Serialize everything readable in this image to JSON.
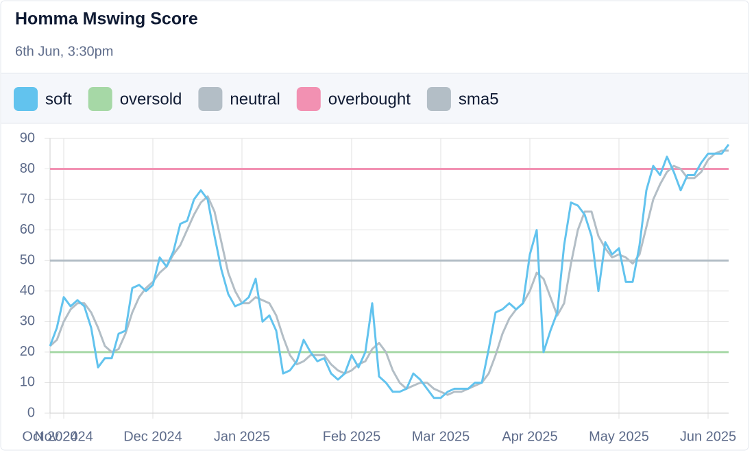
{
  "chart_data": {
    "type": "line",
    "title": "Homma Mswing Score",
    "subtitle": "6th Jun, 3:30pm",
    "categories": [
      "Oct 2024",
      null,
      "Nov 2024",
      null,
      null,
      null,
      null,
      null,
      null,
      null,
      null,
      null,
      null,
      null,
      null,
      "Dec 2024",
      null,
      null,
      null,
      null,
      null,
      null,
      null,
      null,
      null,
      null,
      null,
      null,
      "Jan 2025",
      null,
      null,
      null,
      null,
      null,
      null,
      null,
      null,
      null,
      null,
      null,
      null,
      null,
      null,
      null,
      "Feb 2025",
      null,
      null,
      null,
      null,
      null,
      null,
      null,
      null,
      null,
      null,
      null,
      null,
      "Mar 2025",
      null,
      null,
      null,
      null,
      null,
      null,
      null,
      null,
      null,
      null,
      null,
      null,
      "Apr 2025",
      null,
      null,
      null,
      null,
      null,
      null,
      null,
      null,
      null,
      null,
      null,
      null,
      "May 2025",
      null,
      null,
      null,
      null,
      null,
      null,
      null,
      null,
      null,
      null,
      null,
      null,
      "Jun 2025",
      null,
      null,
      null
    ],
    "series": [
      {
        "name": "soft",
        "color": "#62c3ee",
        "values": [
          22,
          28,
          38,
          35,
          37,
          35,
          28,
          15,
          18,
          18,
          26,
          27,
          41,
          42,
          40,
          42,
          51,
          48,
          53,
          62,
          63,
          70,
          73,
          70,
          58,
          47,
          39,
          35,
          36,
          38,
          44,
          30,
          32,
          27,
          13,
          14,
          17,
          24,
          20,
          17,
          18,
          13,
          11,
          13,
          19,
          15,
          20,
          36,
          12,
          10,
          7,
          7,
          8,
          13,
          11,
          8,
          5,
          5,
          7,
          8,
          8,
          8,
          10,
          10,
          21,
          33,
          34,
          36,
          34,
          36,
          52,
          60,
          20,
          27,
          33,
          55,
          69,
          68,
          65,
          58,
          40,
          56,
          52,
          54,
          43,
          43,
          55,
          73,
          81,
          78,
          84,
          79,
          73,
          78,
          78,
          82,
          85,
          85,
          85,
          88
        ]
      },
      {
        "name": "oversold",
        "color": "#a6d8a6",
        "value": 20
      },
      {
        "name": "neutral",
        "color": "#b3bec6",
        "value": 50
      },
      {
        "name": "overbought",
        "color": "#f291b2",
        "value": 80
      },
      {
        "name": "sma5",
        "color": "#b3bec6",
        "values": [
          22,
          24,
          30,
          34,
          36,
          36,
          33,
          28,
          22,
          20,
          21,
          26,
          33,
          38,
          41,
          43,
          46,
          48,
          52,
          55,
          60,
          65,
          69,
          71,
          66,
          56,
          46,
          40,
          36,
          36,
          38,
          37,
          36,
          32,
          25,
          19,
          16,
          17,
          19,
          19,
          19,
          16,
          14,
          13,
          14,
          16,
          17,
          21,
          23,
          20,
          14,
          10,
          8,
          9,
          10,
          10,
          8,
          7,
          6,
          7,
          7,
          8,
          9,
          10,
          13,
          19,
          26,
          31,
          34,
          36,
          40,
          46,
          44,
          38,
          32,
          36,
          49,
          60,
          66,
          66,
          58,
          54,
          51,
          52,
          51,
          49,
          52,
          61,
          70,
          75,
          79,
          81,
          80,
          77,
          77,
          79,
          83,
          85,
          86,
          86
        ]
      }
    ],
    "ylim": [
      0,
      90
    ],
    "yticks": [
      0,
      10,
      20,
      30,
      40,
      50,
      60,
      70,
      80,
      90
    ],
    "grid": true
  }
}
